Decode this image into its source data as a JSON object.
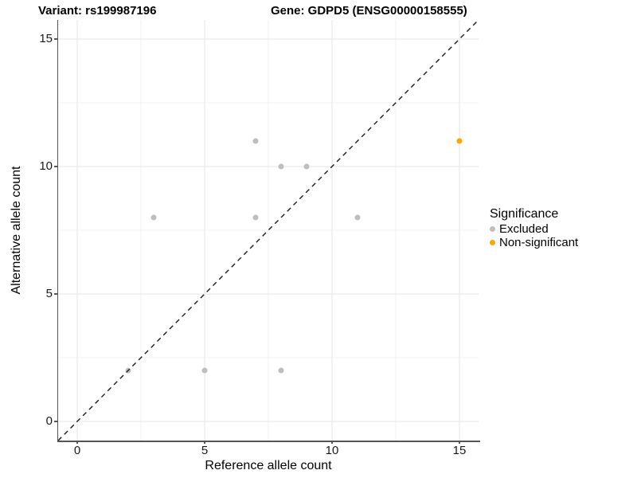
{
  "title": {
    "variant": "Variant: rs199987196",
    "gene": "Gene: GDPD5 (ENSG00000158555)"
  },
  "axes": {
    "x_label": "Reference allele count",
    "y_label": "Alternative allele count",
    "x_ticks": [
      0,
      5,
      10,
      15
    ],
    "y_ticks": [
      0,
      5,
      10,
      15
    ],
    "minor_ticks": [
      2.5,
      7.5,
      12.5
    ]
  },
  "legend": {
    "title": "Significance",
    "items": [
      {
        "label": "Excluded",
        "color": "#BEBEBE"
      },
      {
        "label": "Non-significant",
        "color": "#FFA500"
      }
    ]
  },
  "colors": {
    "grid_major": "#e6e6e6",
    "grid_minor": "#f2f2f2",
    "axis_line": "#555555",
    "identity_line": "#1a1a1a"
  },
  "chart_data": {
    "type": "scatter",
    "title": "Variant: rs199987196   Gene: GDPD5 (ENSG00000158555)",
    "xlabel": "Reference allele count",
    "ylabel": "Alternative allele count",
    "xlim": [
      -0.75,
      15.75
    ],
    "ylim": [
      -0.75,
      15.75
    ],
    "grid": "major+minor",
    "legend_position": "right-middle",
    "reference_line": "dashed identity line y = x from (-0.75,-0.75) to (15.75,15.75)",
    "series": [
      {
        "name": "Excluded",
        "color": "#BEBEBE",
        "points": [
          [
            2,
            2
          ],
          [
            5,
            2
          ],
          [
            8,
            2
          ],
          [
            3,
            8
          ],
          [
            7,
            8
          ],
          [
            11,
            8
          ],
          [
            8,
            10
          ],
          [
            9,
            10
          ],
          [
            7,
            11
          ]
        ]
      },
      {
        "name": "Non-significant",
        "color": "#FFA500",
        "points": [
          [
            15,
            11
          ]
        ]
      }
    ]
  }
}
